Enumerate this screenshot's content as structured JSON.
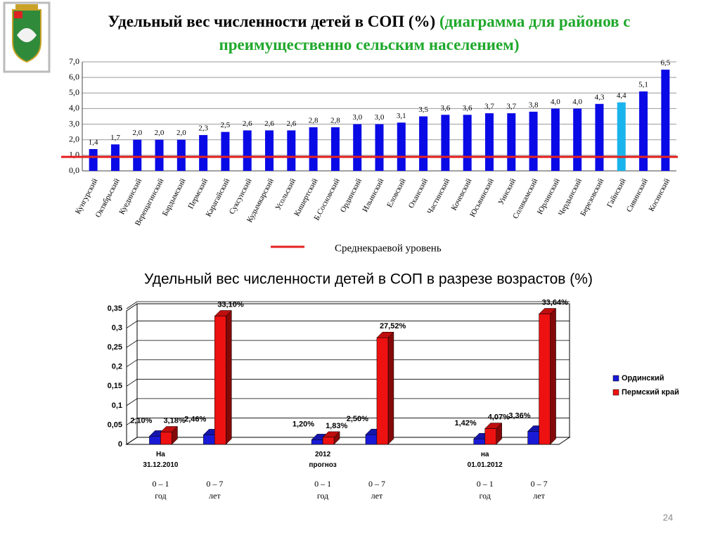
{
  "page_number": "24",
  "chart_data": [
    {
      "type": "bar",
      "title": "Удельный вес численности детей в СОП (%)",
      "subtitle": "(диаграмма для районов с преимущественно сельским населением)",
      "categories": [
        "Кунгурский",
        "Октябрьский",
        "Куединский",
        "Верещагинский",
        "Бардымский",
        "Пермский",
        "Карагайский",
        "Суксунский",
        "Кудымкарский",
        "Усольский",
        "Кишертский",
        "Б.Сосновский",
        "Ординский",
        "Ильинский",
        "Еловский",
        "Оханский",
        "Частинский",
        "Кочевский",
        "Юсьвинский",
        "Уинский",
        "Соликамский",
        "Юрлинский",
        "Чердынский",
        "Березовский",
        "Гайнский",
        "Сивинский",
        "Косинский"
      ],
      "values": [
        1.4,
        1.7,
        2.0,
        2.0,
        2.0,
        2.3,
        2.5,
        2.6,
        2.6,
        2.6,
        2.8,
        2.8,
        3.0,
        3.0,
        3.1,
        3.5,
        3.6,
        3.6,
        3.7,
        3.7,
        3.8,
        4.0,
        4.0,
        4.3,
        4.4,
        5.1,
        6.5
      ],
      "value_labels": [
        "1,4",
        "1,7",
        "2,0",
        "2,0",
        "2,0",
        "2,3",
        "2,5",
        "2,6",
        "2,6",
        "2,6",
        "2,8",
        "2,8",
        "3,0",
        "3,0",
        "3,1",
        "3,5",
        "3,6",
        "3,6",
        "3,7",
        "3,7",
        "3,8",
        "4,0",
        "4,0",
        "4,3",
        "4,4",
        "5,1",
        "6,5"
      ],
      "colors": [
        "#0a0ae6",
        "#0a0ae6",
        "#0a0ae6",
        "#0a0ae6",
        "#0a0ae6",
        "#0a0ae6",
        "#0a0ae6",
        "#0a0ae6",
        "#0a0ae6",
        "#0a0ae6",
        "#0a0ae6",
        "#0a0ae6",
        "#0a0ae6",
        "#0a0ae6",
        "#0a0ae6",
        "#0a0ae6",
        "#0a0ae6",
        "#0a0ae6",
        "#0a0ae6",
        "#0a0ae6",
        "#0a0ae6",
        "#0a0ae6",
        "#0a0ae6",
        "#0a0ae6",
        "#1ab4ec",
        "#0a0ae6",
        "#0a0ae6"
      ],
      "ylim": [
        0,
        7
      ],
      "yticks": [
        {
          "value": 0,
          "label": "0,0"
        },
        {
          "value": 1,
          "label": "1,0"
        },
        {
          "value": 2,
          "label": "2,0"
        },
        {
          "value": 3,
          "label": "3,0"
        },
        {
          "value": 4,
          "label": "4,0"
        },
        {
          "value": 5,
          "label": "5,0"
        },
        {
          "value": 6,
          "label": "6,0"
        },
        {
          "value": 7,
          "label": "7,0"
        }
      ],
      "grid": true,
      "reference_line": {
        "value": 0.9,
        "label": "Среднекраевой уровень",
        "color": "#e52020"
      }
    },
    {
      "type": "bar3d",
      "title": "Удельный вес численности детей в СОП в разрезе возрастов (%)",
      "categories": [
        "0 – 1\nгод",
        "0 – 7\nлет",
        null,
        "0 – 1\nгод",
        "0 – 7\nлет",
        null,
        "0 – 1\nгод",
        "0 – 7\nлет"
      ],
      "groups": [
        "На\n31.12.2010",
        "2012\nпрогноз",
        "на\n01.01.2012"
      ],
      "series": [
        {
          "name": "Ординский",
          "color": "#1a1ad6",
          "values": [
            0.021,
            0.0246,
            null,
            0.012,
            0.025,
            null,
            0.0142,
            0.0336
          ],
          "value_labels": [
            "2,10%",
            "2,46%",
            null,
            "1,20%",
            "2,50%",
            null,
            "1,42%",
            "3,36%"
          ]
        },
        {
          "name": "Пермский край",
          "color": "#ee1111",
          "values": [
            0.0318,
            0.331,
            null,
            0.0183,
            0.2752,
            null,
            0.0407,
            0.3364
          ],
          "value_labels": [
            "3,18%",
            "33,10%",
            null,
            "1,83%",
            "27,52%",
            null,
            "4,07%",
            "33,64%"
          ]
        }
      ],
      "ylim": [
        0,
        0.35
      ],
      "yticks": [
        0,
        {
          "value": 0.05,
          "label": "0,05"
        },
        {
          "value": 0.1,
          "label": "0,1"
        },
        {
          "value": 0.15,
          "label": "0,15"
        },
        {
          "value": 0.2,
          "label": "0,2"
        },
        {
          "value": 0.25,
          "label": "0,25"
        },
        {
          "value": 0.3,
          "label": "0,3"
        },
        {
          "value": 0.35,
          "label": "0,35"
        }
      ],
      "grid": true,
      "legend": "right"
    }
  ]
}
